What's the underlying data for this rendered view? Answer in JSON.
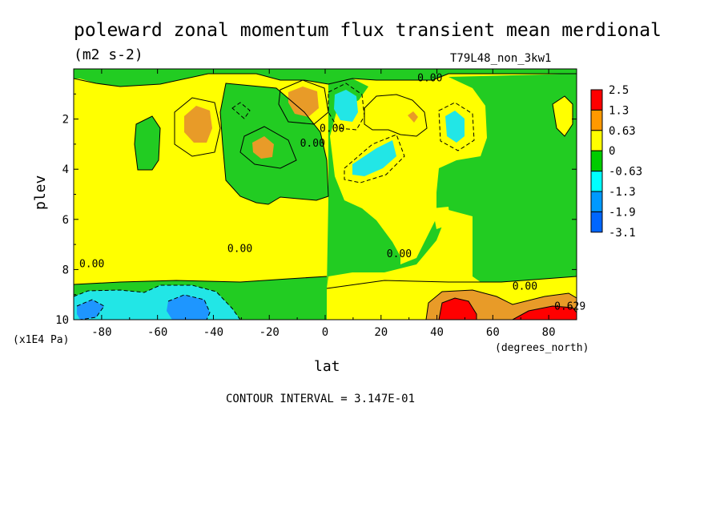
{
  "chart_data": {
    "type": "heatmap",
    "title": "poleward zonal momentum flux transient mean merdional",
    "units": "(m2 s-2)",
    "run_label": "T79L48_non_3kw1",
    "xlabel": "lat",
    "x_units": "(degrees_north)",
    "ylabel": "plev",
    "y_units": "(x1E4 Pa)",
    "xlim": [
      -90,
      90
    ],
    "ylim": [
      0,
      10
    ],
    "y_inverted": true,
    "x_ticks": [
      -80,
      -60,
      -40,
      -20,
      0,
      20,
      40,
      60,
      80
    ],
    "y_ticks": [
      2,
      4,
      6,
      8,
      10
    ],
    "contour_interval_text": "CONTOUR INTERVAL = 3.147E-01",
    "contour_labels": [
      {
        "text": "0.00",
        "lat": -9,
        "plev": 3.1
      },
      {
        "text": "0.00",
        "lat": -2,
        "plev": 2.5
      },
      {
        "text": "0.00",
        "lat": 33,
        "plev": 0.5
      },
      {
        "text": "0.00",
        "lat": -35,
        "plev": 7.3
      },
      {
        "text": "0.00",
        "lat": -88,
        "plev": 7.9
      },
      {
        "text": "0.00",
        "lat": 22,
        "plev": 7.5
      },
      {
        "text": "0.00",
        "lat": 67,
        "plev": 8.8
      },
      {
        "text": "0.629",
        "lat": 82,
        "plev": 9.6
      }
    ],
    "legend": {
      "placement": "right",
      "labels": [
        "2.5",
        "1.3",
        "0.63",
        "0",
        "-0.63",
        "-1.3",
        "-1.9",
        "-3.1"
      ],
      "colors": [
        "#ff0000",
        "#ff9900",
        "#ffff00",
        "#00cc00",
        "#00ffff",
        "#0099ff",
        "#0066ff"
      ]
    },
    "fill_colors": {
      "strong_positive": "#ff0000",
      "positive_2": "#e89b28",
      "positive_1": "#ffff00",
      "negative_1": "#22cc22",
      "negative_2": "#22e6e6",
      "negative_3": "#1e96ff",
      "strong_negative": "#0066ff"
    }
  }
}
